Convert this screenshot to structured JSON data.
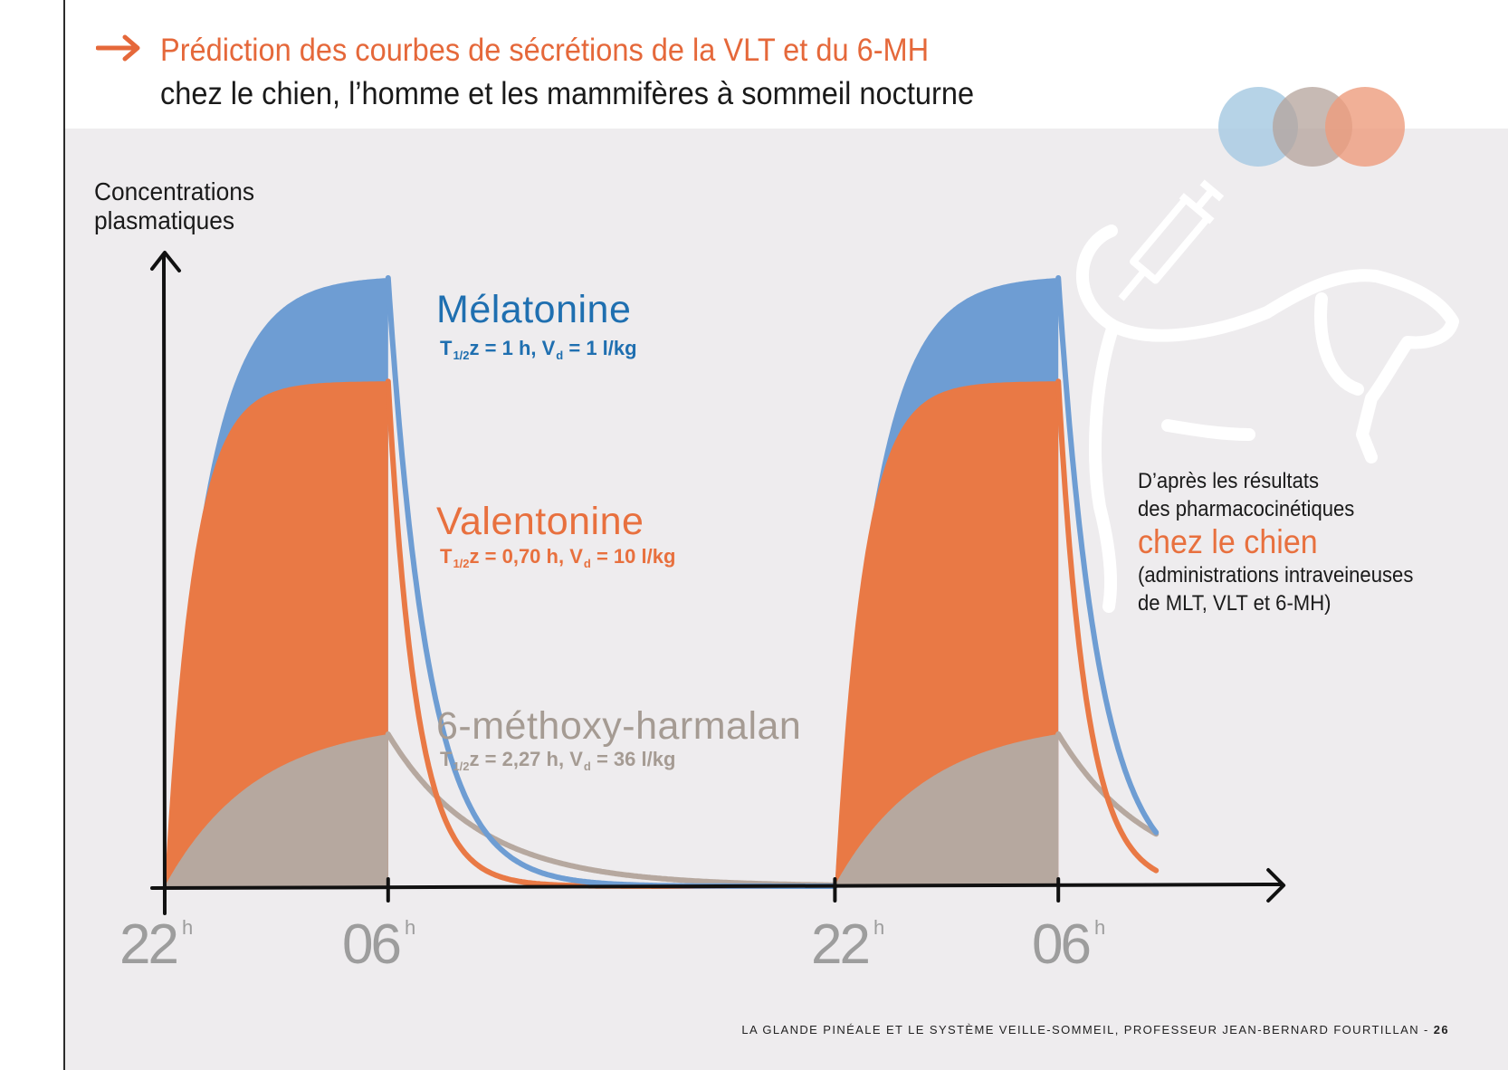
{
  "header": {
    "title_line1": "Prédiction des courbes de sécrétions de la VLT et du 6-MH",
    "title_line2": "chez le chien, l’homme et les mammifères à sommeil nocturne",
    "accent_color": "#e5683a"
  },
  "chart_data": {
    "type": "area",
    "ylabel": "Concentrations\nplasmatiques",
    "xlabel": "",
    "x_ticks": [
      {
        "label": "22",
        "sup": "h"
      },
      {
        "label": "06",
        "sup": "h"
      },
      {
        "label": "22",
        "sup": "h"
      },
      {
        "label": "06",
        "sup": "h"
      }
    ],
    "x_range_hours": [
      0,
      39
    ],
    "infusion_windows_hours": [
      [
        0,
        8
      ],
      [
        24,
        32
      ]
    ],
    "ylim": [
      0,
      1
    ],
    "series": [
      {
        "name": "Mélatonine",
        "params": {
          "t_label": "T",
          "t_sub": "1/2",
          "t_rest": "z = 1 h, V",
          "v_sub": "d",
          "v_rest": " = 1 l/kg"
        },
        "half_life_h": 1.0,
        "plateau": 1.0,
        "color": "#6e9dd3",
        "text_color": "#1f6fb0"
      },
      {
        "name": "Valentonine",
        "params": {
          "t_label": "T",
          "t_sub": "1/2",
          "t_rest": "z = 0,70 h, V",
          "v_sub": "d",
          "v_rest": " = 10 l/kg"
        },
        "half_life_h": 0.7,
        "plateau": 0.83,
        "color": "#e97945",
        "text_color": "#e8703e"
      },
      {
        "name": "6-méthoxy-harmalan",
        "params": {
          "t_label": "T",
          "t_sub": "1/2",
          "t_rest": "z = 2,27 h, V",
          "v_sub": "d",
          "v_rest": " = 36 l/kg"
        },
        "half_life_h": 2.27,
        "plateau": 0.25,
        "color": "#b6a89f",
        "text_color": "#a59b93"
      }
    ]
  },
  "note": {
    "line1": "D’après les résultats",
    "line2": "des pharmacocinétiques",
    "highlight": "chez le chien",
    "line3": "(administrations intraveineuses",
    "line4": "de MLT, VLT et 6-MH)"
  },
  "footer": {
    "text": "LA GLANDE PINÉALE ET LE SYSTÈME VEILLE-SOMMEIL, PROFESSEUR JEAN-BERNARD FOURTILLAN - ",
    "page": "26"
  }
}
